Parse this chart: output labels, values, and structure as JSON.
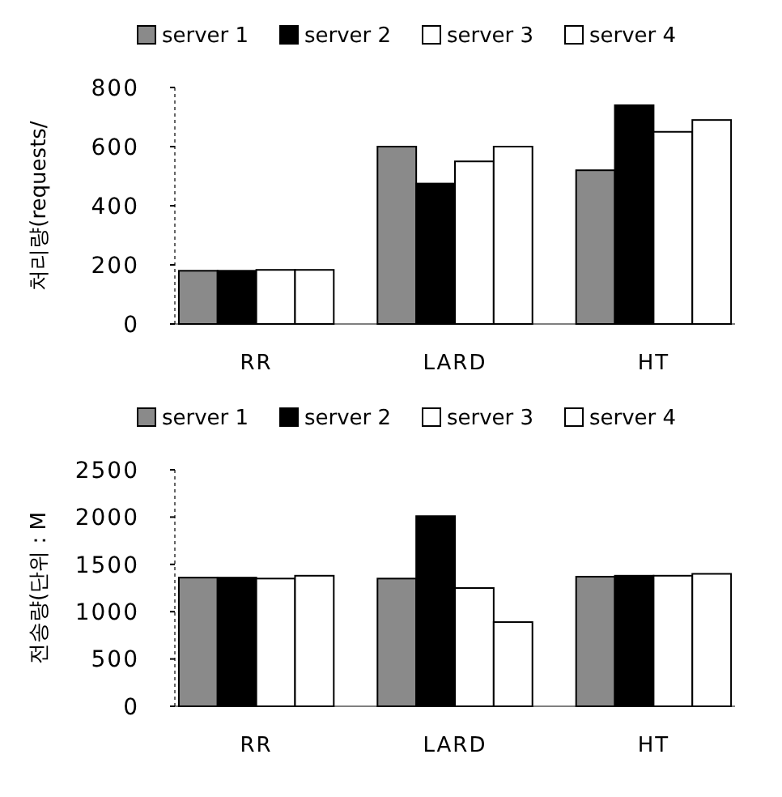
{
  "chart_data": [
    {
      "type": "bar",
      "ylabel": "처리량(requests/",
      "categories": [
        "RR",
        "LARD",
        "HT"
      ],
      "series": [
        {
          "name": "server 1",
          "color": "#8a8a8a",
          "values": [
            180,
            600,
            520
          ]
        },
        {
          "name": "server 2",
          "color": "#000000",
          "values": [
            180,
            475,
            740
          ]
        },
        {
          "name": "server 3",
          "color": "#ffffff",
          "values": [
            183,
            550,
            650
          ]
        },
        {
          "name": "server 4",
          "color": "#ffffff",
          "values": [
            183,
            600,
            690
          ]
        }
      ],
      "ylim": [
        0,
        800
      ],
      "yticks": [
        0,
        200,
        400,
        600,
        800
      ],
      "legend": "top",
      "grid": false
    },
    {
      "type": "bar",
      "ylabel": "전송량(단위 : M",
      "categories": [
        "RR",
        "LARD",
        "HT"
      ],
      "series": [
        {
          "name": "server 1",
          "color": "#8a8a8a",
          "values": [
            1360,
            1350,
            1370
          ]
        },
        {
          "name": "server 2",
          "color": "#000000",
          "values": [
            1360,
            2010,
            1380
          ]
        },
        {
          "name": "server 3",
          "color": "#ffffff",
          "values": [
            1350,
            1250,
            1380
          ]
        },
        {
          "name": "server 4",
          "color": "#ffffff",
          "values": [
            1380,
            890,
            1400
          ]
        }
      ],
      "ylim": [
        0,
        2500
      ],
      "yticks": [
        0,
        500,
        1000,
        1500,
        2000,
        2500
      ],
      "legend": "top",
      "grid": false
    }
  ]
}
